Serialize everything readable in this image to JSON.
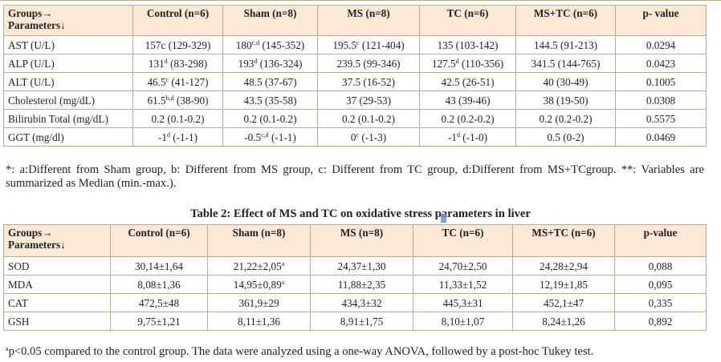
{
  "table1": {
    "header": {
      "groups_label": "Groups→",
      "parameters_label": "Parameters↓",
      "columns": [
        {
          "name": "Control (n=6)"
        },
        {
          "name": "Sham (n=8)"
        },
        {
          "name": "MS (n=8)"
        },
        {
          "name": "TC (n=6)"
        },
        {
          "name": "MS+TC (n=6)"
        },
        {
          "name": "p- value"
        }
      ]
    },
    "rows": [
      {
        "parameter": "AST (U/L)",
        "cells": [
          {
            "main": "157c",
            "sup": "",
            "rest": " (129-329)"
          },
          {
            "main": "180",
            "sup": "c,d",
            "rest": " (145-352)"
          },
          {
            "main": "195.5",
            "sup": "c",
            "rest": " (121-404)"
          },
          {
            "main": "135 (103-142)",
            "sup": "",
            "rest": ""
          },
          {
            "main": "144.5 (91-213)",
            "sup": "",
            "rest": ""
          },
          {
            "main": "0.0294",
            "sup": "",
            "rest": ""
          }
        ]
      },
      {
        "parameter": "ALP (U/L)",
        "cells": [
          {
            "main": "131",
            "sup": "d",
            "rest": " (83-298)"
          },
          {
            "main": "193",
            "sup": "d",
            "rest": " (136-324)"
          },
          {
            "main": "239.5 (99-346)",
            "sup": "",
            "rest": ""
          },
          {
            "main": "127.5",
            "sup": "d",
            "rest": " (110-356)"
          },
          {
            "main": "341.5 (144-765)",
            "sup": "",
            "rest": ""
          },
          {
            "main": "0.0423",
            "sup": "",
            "rest": ""
          }
        ]
      },
      {
        "parameter": "ALT (U/L)",
        "cells": [
          {
            "main": "46.5",
            "sup": "c",
            "rest": " (41-127)"
          },
          {
            "main": "48.5 (37-67)",
            "sup": "",
            "rest": ""
          },
          {
            "main": "37.5 (16-52)",
            "sup": "",
            "rest": ""
          },
          {
            "main": "42.5 (26-51)",
            "sup": "",
            "rest": ""
          },
          {
            "main": "40 (30-49)",
            "sup": "",
            "rest": ""
          },
          {
            "main": "0.1005",
            "sup": "",
            "rest": ""
          }
        ]
      },
      {
        "parameter": "Cholesterol (mg/dL)",
        "cells": [
          {
            "main": "61.5",
            "sup": "b,d",
            "rest": " (38-90)"
          },
          {
            "main": "43.5 (35-58)",
            "sup": "",
            "rest": ""
          },
          {
            "main": "37 (29-53)",
            "sup": "",
            "rest": ""
          },
          {
            "main": "43 (39-46)",
            "sup": "",
            "rest": ""
          },
          {
            "main": "38 (19-50)",
            "sup": "",
            "rest": ""
          },
          {
            "main": "0.0308",
            "sup": "",
            "rest": ""
          }
        ]
      },
      {
        "parameter": "Bilirubin Total (mg/dL)",
        "cells": [
          {
            "main": "0.2 (0.1-0.2)",
            "sup": "",
            "rest": ""
          },
          {
            "main": "0.2 (0.1-0.2)",
            "sup": "",
            "rest": ""
          },
          {
            "main": "0.2 (0.1-0.2)",
            "sup": "",
            "rest": ""
          },
          {
            "main": "0.2 (0.2-0.2)",
            "sup": "",
            "rest": ""
          },
          {
            "main": "0.2 (0.2-0.2)",
            "sup": "",
            "rest": ""
          },
          {
            "main": "0.5575",
            "sup": "",
            "rest": ""
          }
        ]
      },
      {
        "parameter": "GGT (mg/dl)",
        "cells": [
          {
            "main": "-1",
            "sup": "d",
            "rest": " (-1-1)"
          },
          {
            "main": "-0.5",
            "sup": "c,d",
            "rest": " (-1-1)"
          },
          {
            "main": "0",
            "sup": "c",
            "rest": " (-1-3)"
          },
          {
            "main": "-1",
            "sup": "d",
            "rest": " (-1-0)"
          },
          {
            "main": "0.5 (0-2)",
            "sup": "",
            "rest": ""
          },
          {
            "main": "0.0469",
            "sup": "",
            "rest": ""
          }
        ]
      }
    ],
    "footnote": "*: a:Different from Sham group, b: Different from MS group, c: Different from TC group, d:Different from MS+TCgroup. **: Variables are summarized as Median (min.-max.)."
  },
  "table2": {
    "title": "Table 2: Effect of MS and TC on oxidative stress parameters in liver",
    "header": {
      "groups_label": "Groups→",
      "parameters_label": "Parameters↓",
      "columns": [
        {
          "name": "Control (n=6)"
        },
        {
          "name": "Sham (n=8)"
        },
        {
          "name": "MS (n=8)"
        },
        {
          "name": "TC (n=6)"
        },
        {
          "name": "MS+TC (n=6)"
        },
        {
          "name": "p-value"
        }
      ]
    },
    "rows": [
      {
        "parameter": "SOD",
        "cells": [
          {
            "main": "30,14±1,64",
            "sup": ""
          },
          {
            "main": "21,22±2,05",
            "sup": "a"
          },
          {
            "main": "24,37±1,30",
            "sup": ""
          },
          {
            "main": "24,70±2,50",
            "sup": ""
          },
          {
            "main": "24,28±2,94",
            "sup": ""
          },
          {
            "main": "0,088",
            "sup": ""
          }
        ]
      },
      {
        "parameter": "MDA",
        "cells": [
          {
            "main": "8,08±1,36",
            "sup": ""
          },
          {
            "main": "14,95±0,89",
            "sup": "a"
          },
          {
            "main": "11,88±2,35",
            "sup": ""
          },
          {
            "main": "11,33±1,52",
            "sup": ""
          },
          {
            "main": "12,19±1,85",
            "sup": ""
          },
          {
            "main": "0,095",
            "sup": ""
          }
        ]
      },
      {
        "parameter": "CAT",
        "cells": [
          {
            "main": "472,5±48",
            "sup": ""
          },
          {
            "main": "361,9±29",
            "sup": ""
          },
          {
            "main": "434,3±32",
            "sup": ""
          },
          {
            "main": "445,3±31",
            "sup": ""
          },
          {
            "main": "452,1±47",
            "sup": ""
          },
          {
            "main": "0,335",
            "sup": ""
          }
        ]
      },
      {
        "parameter": "GSH",
        "cells": [
          {
            "main": "9,75±1,21",
            "sup": ""
          },
          {
            "main": "8,11±1,36",
            "sup": ""
          },
          {
            "main": "8,91±1,75",
            "sup": ""
          },
          {
            "main": "8,10±1,07",
            "sup": ""
          },
          {
            "main": "8,24±1,26",
            "sup": ""
          },
          {
            "main": "0,892",
            "sup": ""
          }
        ]
      }
    ],
    "footnote_sup": "a",
    "footnote": "p<0.05 compared to the control group. The data were analyzed using a one-way ANOVA, followed by a post-hoc Tukey test."
  }
}
